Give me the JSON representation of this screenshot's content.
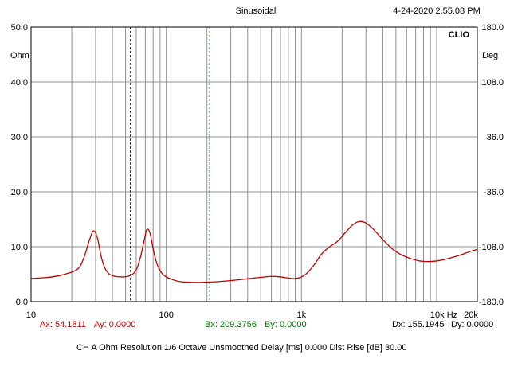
{
  "header": {
    "title": "Sinusoidal",
    "datetime": "4-24-2020 2.55.08 PM",
    "logo": "CLIO"
  },
  "chart_data": {
    "type": "line",
    "x_scale": "log",
    "xlim": [
      10,
      20000
    ],
    "x_tick_labels": [
      {
        "value": 10,
        "label": "10"
      },
      {
        "value": 100,
        "label": "100"
      },
      {
        "value": 1000,
        "label": "1k"
      },
      {
        "value": 10000,
        "label": "10k Hz"
      },
      {
        "value": 20000,
        "label": "20k"
      }
    ],
    "y_left": {
      "unit": "Ohm",
      "ylim": [
        0,
        50
      ],
      "ticks": [
        "0.0",
        "10.0",
        "20.0",
        "30.0",
        "40.0",
        "50.0"
      ]
    },
    "y_right": {
      "unit": "Deg",
      "ylim": [
        -180,
        180
      ],
      "ticks": [
        "-180.0",
        "-108.0",
        "-36.0",
        "36.0",
        "108.0",
        "180.0"
      ]
    },
    "grid": true,
    "series": [
      {
        "color": "#c00000",
        "points": [
          [
            10,
            4.2
          ],
          [
            13,
            4.4
          ],
          [
            16,
            4.7
          ],
          [
            19,
            5.2
          ],
          [
            21,
            5.6
          ],
          [
            23,
            6.4
          ],
          [
            25,
            8.5
          ],
          [
            27,
            11.2
          ],
          [
            29,
            12.9
          ],
          [
            31,
            11.5
          ],
          [
            33,
            8.2
          ],
          [
            35,
            6.2
          ],
          [
            38,
            5.0
          ],
          [
            42,
            4.6
          ],
          [
            47,
            4.5
          ],
          [
            52,
            4.6
          ],
          [
            57,
            5.1
          ],
          [
            61,
            6.2
          ],
          [
            65,
            8.5
          ],
          [
            69,
            11.4
          ],
          [
            72,
            13.2
          ],
          [
            76,
            12.4
          ],
          [
            80,
            9.6
          ],
          [
            85,
            7.0
          ],
          [
            92,
            5.3
          ],
          [
            100,
            4.5
          ],
          [
            115,
            3.9
          ],
          [
            130,
            3.6
          ],
          [
            170,
            3.5
          ],
          [
            230,
            3.6
          ],
          [
            320,
            3.9
          ],
          [
            450,
            4.3
          ],
          [
            600,
            4.6
          ],
          [
            700,
            4.5
          ],
          [
            800,
            4.3
          ],
          [
            900,
            4.2
          ],
          [
            1000,
            4.5
          ],
          [
            1100,
            5.2
          ],
          [
            1250,
            6.8
          ],
          [
            1400,
            8.6
          ],
          [
            1600,
            9.9
          ],
          [
            1850,
            11.0
          ],
          [
            2100,
            12.5
          ],
          [
            2400,
            14.0
          ],
          [
            2700,
            14.6
          ],
          [
            3000,
            14.3
          ],
          [
            3400,
            13.2
          ],
          [
            4000,
            11.3
          ],
          [
            4700,
            9.6
          ],
          [
            5500,
            8.5
          ],
          [
            6500,
            7.8
          ],
          [
            7500,
            7.4
          ],
          [
            8500,
            7.3
          ],
          [
            10000,
            7.4
          ],
          [
            12000,
            7.8
          ],
          [
            15000,
            8.5
          ],
          [
            17500,
            9.1
          ],
          [
            20000,
            9.5
          ]
        ]
      }
    ],
    "markers": [
      {
        "axis": "x",
        "value": 54.1811,
        "color": "#c00000"
      },
      {
        "axis": "x",
        "value": 209.3756,
        "color": "#007000"
      }
    ]
  },
  "cursors": {
    "ax": "Ax: 54.1811",
    "ay": "Ay: 0.0000",
    "bx": "Bx: 209.3756",
    "by": "By: 0.0000",
    "dx": "Dx: 155.1945",
    "dy": "Dy: 0.0000"
  },
  "settings": {
    "line": "CH A   Ohm   Resolution 1/6 Octave   Unsmoothed   Delay [ms] 0.000   Dist Rise [dB] 30.00"
  }
}
